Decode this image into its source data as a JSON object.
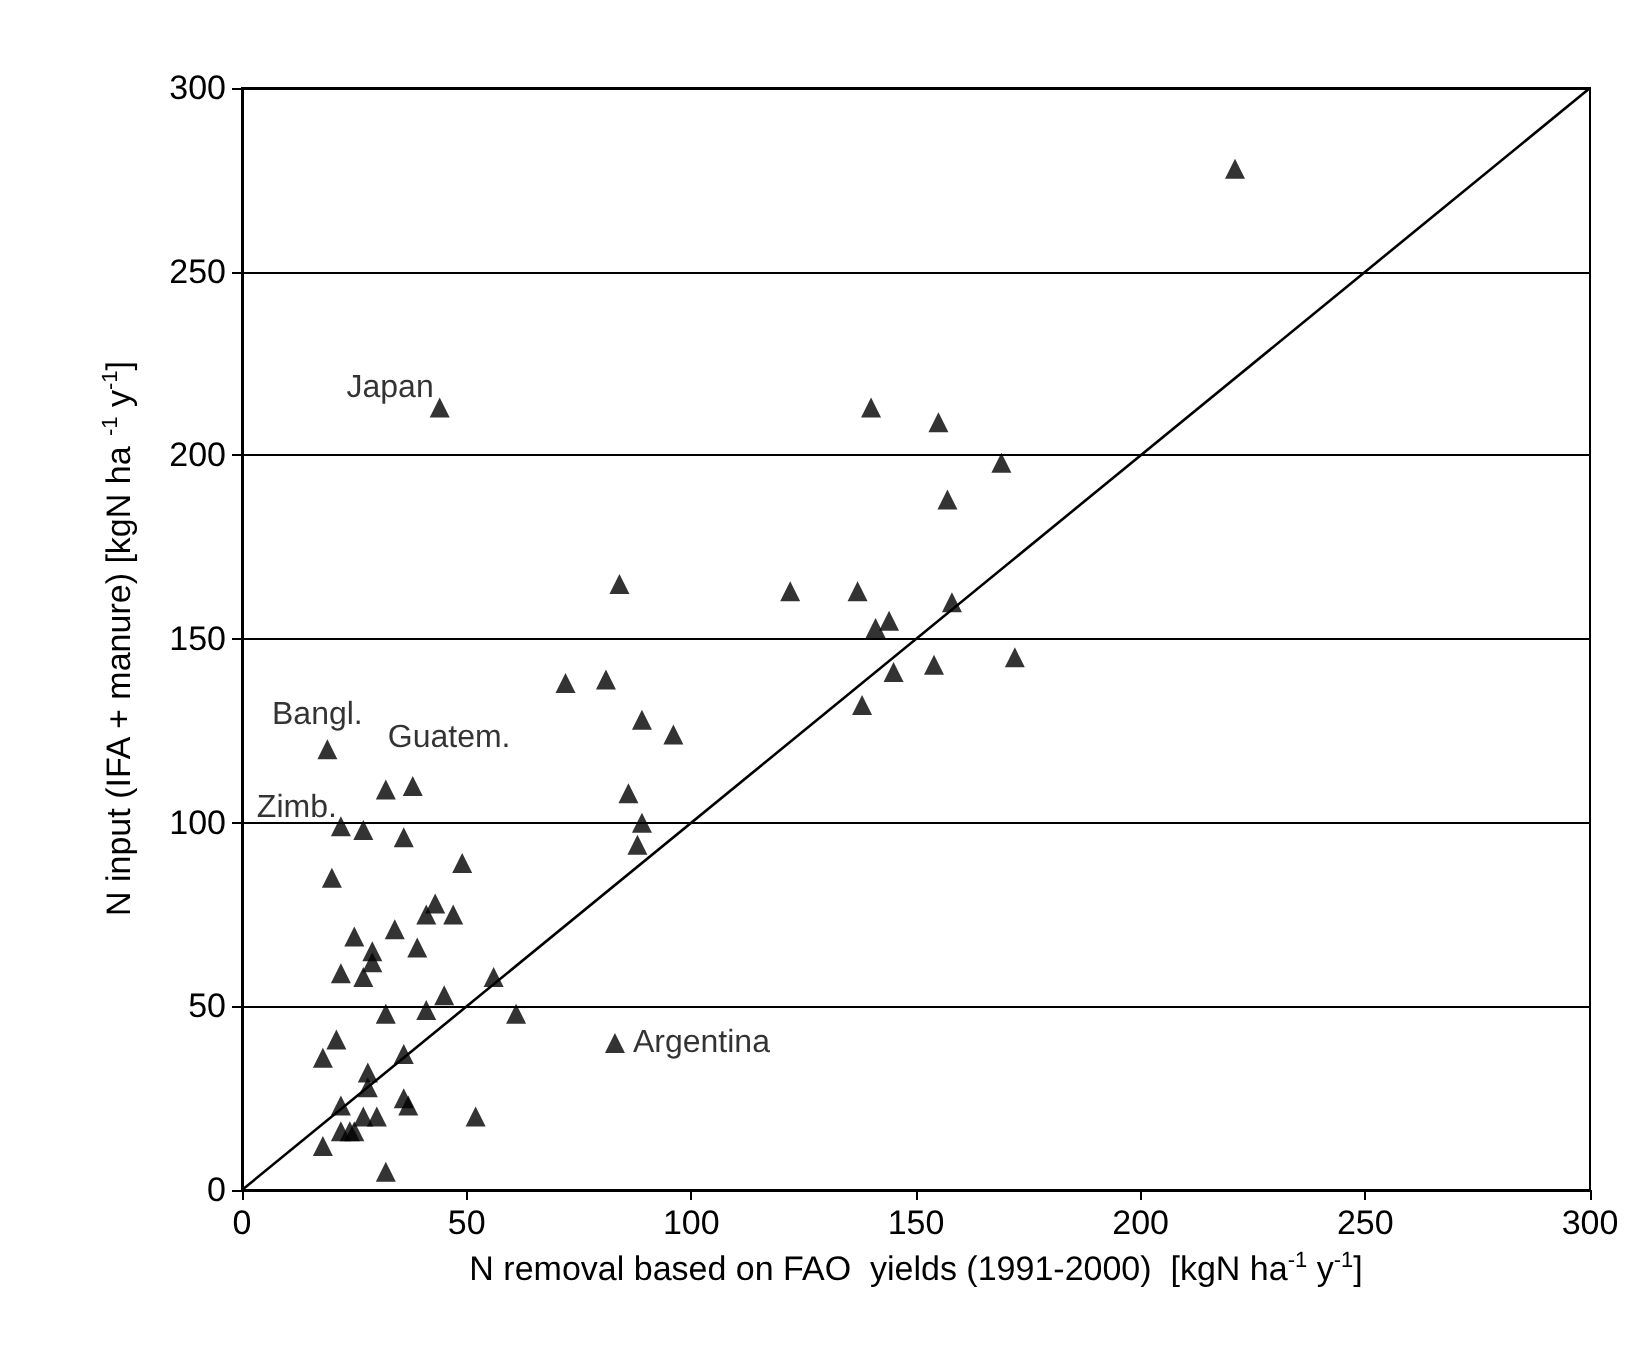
{
  "chart_data": {
    "type": "scatter",
    "xlabel": "N removal based on FAO  yields (1991-2000)  [kgN ha$^{-1}$ y$^{-1}$]",
    "ylabel": "N input (IFA + manure) [kgN ha $^{-1}$ y$^{-1}$]",
    "xlim": [
      0,
      300
    ],
    "xticks": [
      0,
      50,
      100,
      150,
      200,
      250,
      300
    ],
    "ylim": [
      0,
      300
    ],
    "yticks": [
      0,
      50,
      100,
      150,
      200,
      250,
      300
    ],
    "grid": "y",
    "marker": "triangle",
    "series": [
      {
        "color": "#000000",
        "x": [
          221,
          44,
          140,
          155,
          169,
          157,
          84,
          122,
          137,
          144,
          141,
          158,
          72,
          81,
          145,
          138,
          154,
          172,
          89,
          96,
          86,
          89,
          88,
          19,
          32,
          38,
          22,
          27,
          36,
          49,
          20,
          43,
          41,
          47,
          25,
          34,
          29,
          29,
          39,
          22,
          27,
          56,
          32,
          41,
          45,
          61,
          21,
          18,
          36,
          28,
          28,
          22,
          36,
          37,
          22,
          24,
          25,
          27,
          30,
          18,
          32,
          52,
          83
        ],
        "values": [
          278,
          213,
          213,
          209,
          198,
          188,
          165,
          163,
          163,
          155,
          153,
          160,
          138,
          139,
          141,
          132,
          143,
          145,
          128,
          124,
          108,
          100,
          94,
          120,
          109,
          110,
          99,
          98,
          96,
          89,
          85,
          78,
          75,
          75,
          69,
          71,
          65,
          62,
          66,
          59,
          58,
          58,
          48,
          49,
          53,
          48,
          41,
          36,
          37,
          32,
          28,
          23,
          25,
          23,
          16,
          16,
          16,
          20,
          20,
          12,
          5,
          20,
          40
        ]
      },
      {
        "type": "line",
        "marker": "none",
        "color": "#000000",
        "x": [
          0,
          300
        ],
        "values": [
          0,
          300
        ]
      }
    ],
    "annotations": [
      {
        "text": "Japan",
        "x": 44,
        "y": 213
      },
      {
        "text": "Bangl.",
        "x": 19,
        "y": 120
      },
      {
        "text": "Guatem.",
        "x": 32,
        "y": 109
      },
      {
        "text": "Zimb.",
        "x": 22,
        "y": 99
      },
      {
        "text": "Argentina",
        "x": 83,
        "y": 40
      }
    ]
  }
}
